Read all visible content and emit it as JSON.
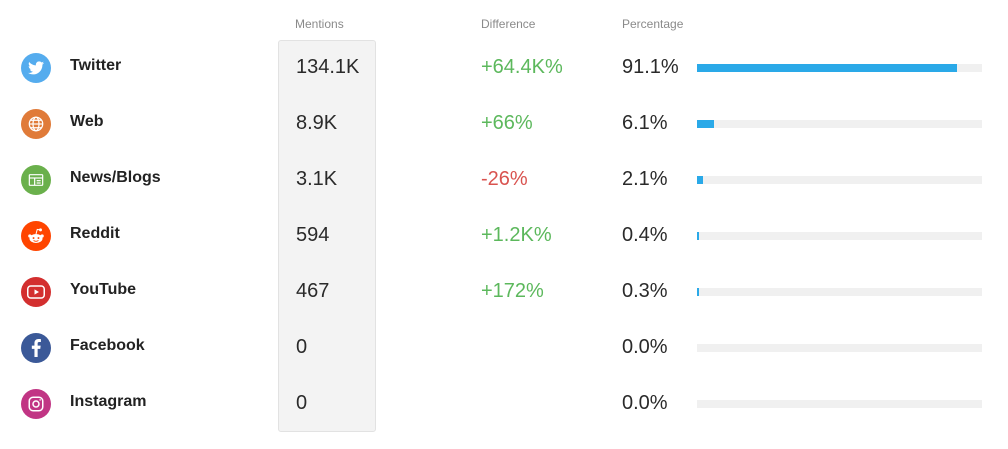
{
  "headers": {
    "mentions": "Mentions",
    "difference": "Difference",
    "percentage": "Percentage"
  },
  "colors": {
    "positive": "#5cb85c",
    "negative": "#d9534f",
    "bar": "#2aa9e8"
  },
  "sources": [
    {
      "name": "Twitter",
      "icon": "twitter-icon",
      "icon_color": "#55acee",
      "mentions": "134.1K",
      "difference": "+64.4K%",
      "trend": "positive",
      "percentage": "91.1%",
      "share": 0.911
    },
    {
      "name": "Web",
      "icon": "globe-icon",
      "icon_color": "#e07b39",
      "mentions": "8.9K",
      "difference": "+66%",
      "trend": "positive",
      "percentage": "6.1%",
      "share": 0.061
    },
    {
      "name": "News/Blogs",
      "icon": "news-icon",
      "icon_color": "#6ab04c",
      "mentions": "3.1K",
      "difference": "-26%",
      "trend": "negative",
      "percentage": "2.1%",
      "share": 0.021
    },
    {
      "name": "Reddit",
      "icon": "reddit-icon",
      "icon_color": "#ff4500",
      "mentions": "594",
      "difference": "+1.2K%",
      "trend": "positive",
      "percentage": "0.4%",
      "share": 0.004
    },
    {
      "name": "YouTube",
      "icon": "youtube-icon",
      "icon_color": "#d32f2f",
      "mentions": "467",
      "difference": "+172%",
      "trend": "positive",
      "percentage": "0.3%",
      "share": 0.003
    },
    {
      "name": "Facebook",
      "icon": "facebook-icon",
      "icon_color": "#3b5998",
      "mentions": "0",
      "difference": "",
      "trend": "none",
      "percentage": "0.0%",
      "share": 0.0
    },
    {
      "name": "Instagram",
      "icon": "instagram-icon",
      "icon_color": "#c13584",
      "mentions": "0",
      "difference": "",
      "trend": "none",
      "percentage": "0.0%",
      "share": 0.0
    }
  ]
}
